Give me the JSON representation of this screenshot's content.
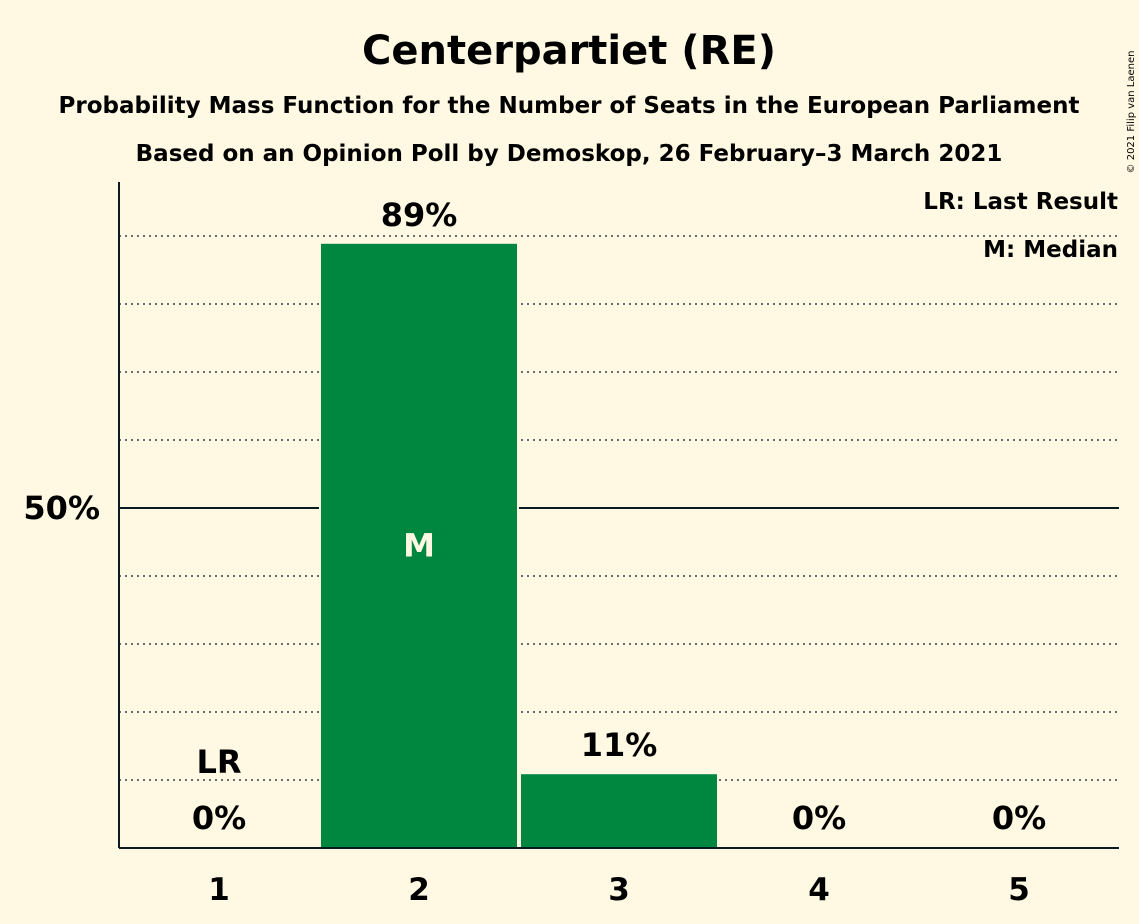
{
  "chart_data": {
    "type": "bar",
    "title": "Centerpartiet (RE)",
    "subtitle": "Probability Mass Function for the Number of Seats in the European Parliament",
    "subtitle2": "Based on an Opinion Poll by Demoskop, 26 February–3 March 2021",
    "categories": [
      "1",
      "2",
      "3",
      "4",
      "5"
    ],
    "values": [
      0,
      89,
      11,
      0,
      0
    ],
    "value_labels": [
      "0%",
      "89%",
      "11%",
      "0%",
      "0%"
    ],
    "ylim": [
      0,
      97
    ],
    "gridlines": [
      10,
      20,
      30,
      40,
      60,
      70,
      80,
      90
    ],
    "y_ticks": [
      {
        "value": 50,
        "label": "50%"
      }
    ],
    "bar_color": "#00873F",
    "median_category": "2",
    "median_marker": "M",
    "last_result_category": "1",
    "last_result_marker": "LR",
    "legend": [
      "LR: Last Result",
      "M: Median"
    ],
    "legend_position": "top-right",
    "copyright": "© 2021 Filip van Laenen"
  }
}
